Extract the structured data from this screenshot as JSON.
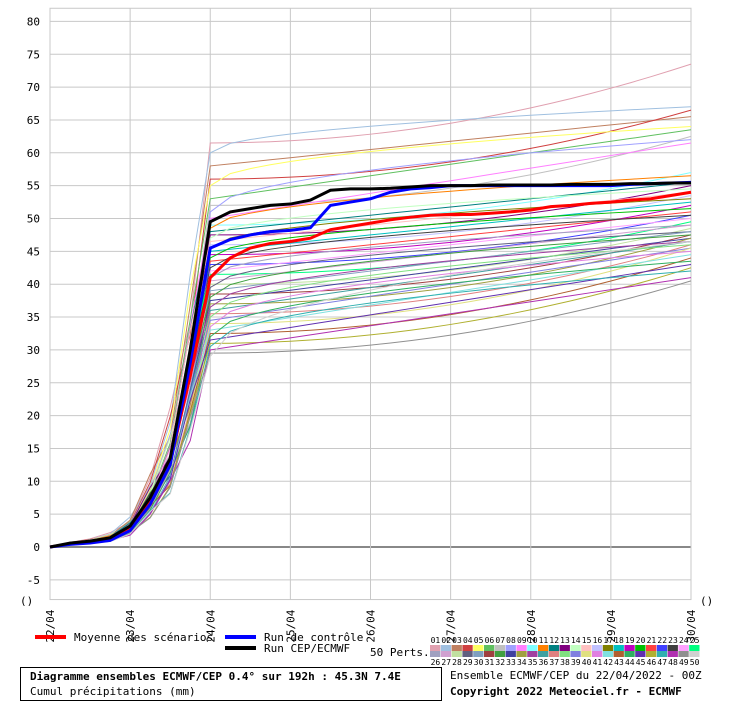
{
  "chart_data": {
    "type": "line",
    "title": "Diagramme ensembles ECMWF/CEP 0.4° sur 192h : 45.3N 7.4E",
    "subtitle": "Cumul précipitations (mm)",
    "ylim": [
      -8,
      82
    ],
    "yticks": [
      -5,
      0,
      5,
      10,
      15,
      20,
      25,
      30,
      35,
      40,
      45,
      50,
      55,
      60,
      65,
      70,
      75,
      80
    ],
    "xticks": [
      "22/04",
      "23/04",
      "24/04",
      "25/04",
      "26/04",
      "27/04",
      "28/04",
      "29/04",
      "30/04"
    ],
    "x_hours": [
      0,
      6,
      12,
      18,
      24,
      30,
      36,
      42,
      48,
      54,
      60,
      66,
      72,
      78,
      84,
      90,
      96,
      102,
      108,
      114,
      120,
      126,
      132,
      138,
      144,
      150,
      156,
      162,
      168,
      174,
      180,
      186,
      192
    ],
    "series": [
      {
        "name": "Moyenne des scénarios",
        "color": "#ff0000",
        "width": 3,
        "values": [
          0,
          0.5,
          0.8,
          1.3,
          2.8,
          7.0,
          13.0,
          26.0,
          41.0,
          44.0,
          45.5,
          46.2,
          46.5,
          47.0,
          48.3,
          48.8,
          49.3,
          49.8,
          50.2,
          50.5,
          50.6,
          50.6,
          50.8,
          51.0,
          51.3,
          51.8,
          52.0,
          52.3,
          52.5,
          52.8,
          53.0,
          53.5,
          54.0
        ]
      },
      {
        "name": "Run de contrôle",
        "color": "#0000ff",
        "width": 3,
        "values": [
          0,
          0.4,
          0.6,
          1.0,
          2.5,
          6.5,
          12.5,
          28.0,
          45.5,
          46.8,
          47.5,
          48.0,
          48.2,
          48.6,
          52.0,
          52.5,
          53.0,
          54.0,
          54.5,
          54.7,
          55.0,
          55.0,
          55.0,
          55.0,
          55.0,
          55.0,
          55.0,
          55.0,
          55.0,
          55.2,
          55.3,
          55.4,
          55.5
        ]
      },
      {
        "name": "Run CEP/ECMWF",
        "color": "#000000",
        "width": 3,
        "values": [
          0,
          0.6,
          0.9,
          1.4,
          3.2,
          7.5,
          13.5,
          30.0,
          49.5,
          51.0,
          51.5,
          52.0,
          52.2,
          52.8,
          54.3,
          54.5,
          54.5,
          54.6,
          54.8,
          55.0,
          55.0,
          55.0,
          55.1,
          55.1,
          55.1,
          55.1,
          55.2,
          55.2,
          55.2,
          55.3,
          55.3,
          55.4,
          55.4
        ]
      }
    ],
    "perturbations_label": "50 Perts.",
    "perturbation_ids": [
      "01",
      "02",
      "03",
      "04",
      "05",
      "06",
      "07",
      "08",
      "09",
      "10",
      "11",
      "12",
      "13",
      "14",
      "15",
      "16",
      "17",
      "18",
      "19",
      "20",
      "21",
      "22",
      "23",
      "24",
      "25",
      "26",
      "27",
      "28",
      "29",
      "30",
      "31",
      "32",
      "33",
      "34",
      "35",
      "36",
      "37",
      "38",
      "39",
      "40",
      "41",
      "42",
      "43",
      "44",
      "45",
      "46",
      "47",
      "48",
      "49",
      "50"
    ],
    "perturbation_colors": [
      "#e0a0b0",
      "#a0c0e0",
      "#c08060",
      "#d04040",
      "#ffff60",
      "#60c060",
      "#c0c0c0",
      "#a0a0ff",
      "#ff80ff",
      "#80ffff",
      "#ff8000",
      "#008080",
      "#800080",
      "#c0ffc0",
      "#ffc0c0",
      "#c0c0ff",
      "#808000",
      "#00c0c0",
      "#c000c0",
      "#00c000",
      "#ff4040",
      "#4040ff",
      "#404040",
      "#ffa0ff",
      "#00ff80",
      "#a0a0c0",
      "#d0a0d0",
      "#c0e0a0",
      "#606080",
      "#80a0c0",
      "#a04040",
      "#40a040",
      "#4040a0",
      "#a0a040",
      "#a040a0",
      "#40a0a0",
      "#e08080",
      "#80e080",
      "#8080e0",
      "#e0e080",
      "#e080e0",
      "#80e0e0",
      "#b06030",
      "#30b060",
      "#6030b0",
      "#b0b030",
      "#30b0b0",
      "#b030b0",
      "#909090",
      "#d0d0d0"
    ],
    "perturbation_finals": [
      73.5,
      67,
      65.5,
      66.5,
      64,
      63.5,
      62.5,
      62,
      61.5,
      57,
      56.5,
      55.5,
      55,
      54.5,
      54,
      53.5,
      53,
      52.5,
      52,
      51.5,
      51,
      50.5,
      50.5,
      50,
      49.5,
      49,
      49,
      48.5,
      48,
      48,
      47.5,
      47.5,
      47,
      47,
      46.5,
      46.5,
      46,
      46,
      45.5,
      45.5,
      45,
      44.5,
      44,
      43.5,
      43,
      42.5,
      42,
      41,
      40.5,
      46.5
    ],
    "perturbation_at_day2": [
      61.5,
      60,
      58,
      56,
      55,
      53,
      52,
      51,
      50,
      49,
      48.5,
      48,
      47.5,
      47,
      46.5,
      46,
      45.5,
      45,
      44.5,
      44,
      43.5,
      43,
      42.5,
      42,
      41.5,
      41,
      40.5,
      40,
      39.5,
      39,
      38.5,
      38,
      37.5,
      37,
      36.5,
      36,
      35.5,
      35,
      34.5,
      34,
      33.5,
      33,
      32.5,
      32,
      31.5,
      31,
      30.5,
      30,
      29.5,
      29
    ]
  },
  "left_marker": "()",
  "right_marker": "()",
  "footer": {
    "ensemble_text": "Ensemble ECMWF/CEP du 22/04/2022 - 00Z",
    "copyright": "Copyright 2022 Meteociel.fr - ECMWF"
  }
}
